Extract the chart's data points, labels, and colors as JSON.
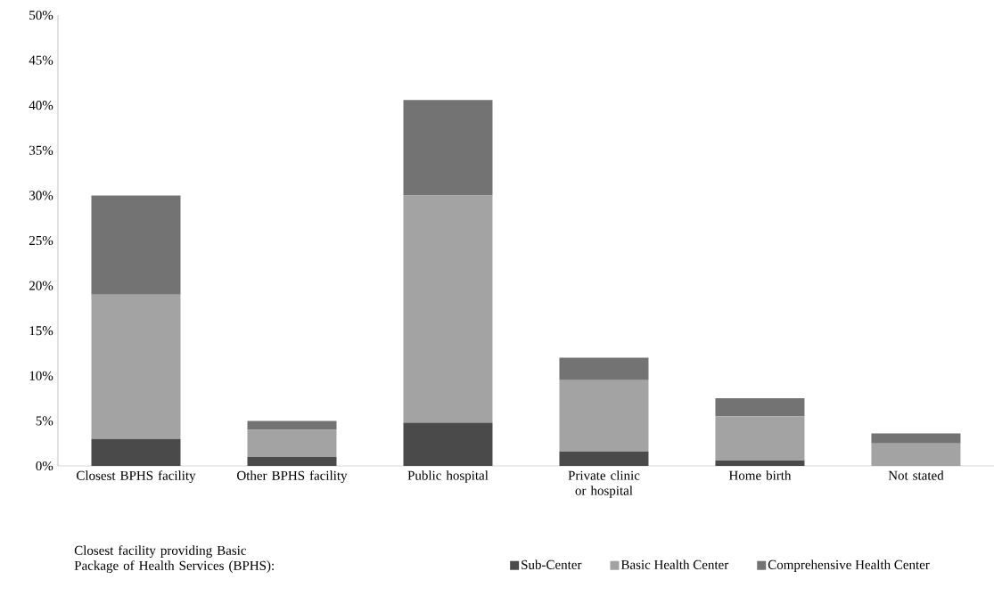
{
  "chart_data": {
    "type": "bar",
    "stacked": true,
    "categories": [
      "Closest BPHS facility",
      "Other BPHS facility",
      "Public hospital",
      "Private clinic or hospital",
      "Home birth",
      "Not stated"
    ],
    "series": [
      {
        "name": "Sub-Center",
        "color": "#4a4a4a",
        "values": [
          3,
          1,
          4.8,
          1.6,
          0.6,
          0
        ]
      },
      {
        "name": "Basic Health Center",
        "color": "#a3a3a3",
        "values": [
          16,
          3,
          25.2,
          7.9,
          4.9,
          2.5
        ]
      },
      {
        "name": "Comprehensive Health Center",
        "color": "#737373",
        "values": [
          11,
          1,
          10.6,
          2.5,
          2.0,
          1.1
        ]
      }
    ],
    "ylim": [
      0,
      50
    ],
    "yticks": [
      {
        "value": 0,
        "label": "0%"
      },
      {
        "value": 5,
        "label": "5%"
      },
      {
        "value": 10,
        "label": "10%"
      },
      {
        "value": 15,
        "label": "15%"
      },
      {
        "value": 20,
        "label": "20%"
      },
      {
        "value": 25,
        "label": "25%"
      },
      {
        "value": 30,
        "label": "30%"
      },
      {
        "value": 35,
        "label": "35%"
      },
      {
        "value": 40,
        "label": "40%"
      },
      {
        "value": 45,
        "label": "45%"
      },
      {
        "value": 50,
        "label": "50%"
      }
    ],
    "legend": "bottom",
    "legend_title": "Closest facility providing Basic Package of Health Services (BPHS):",
    "grid": false
  }
}
